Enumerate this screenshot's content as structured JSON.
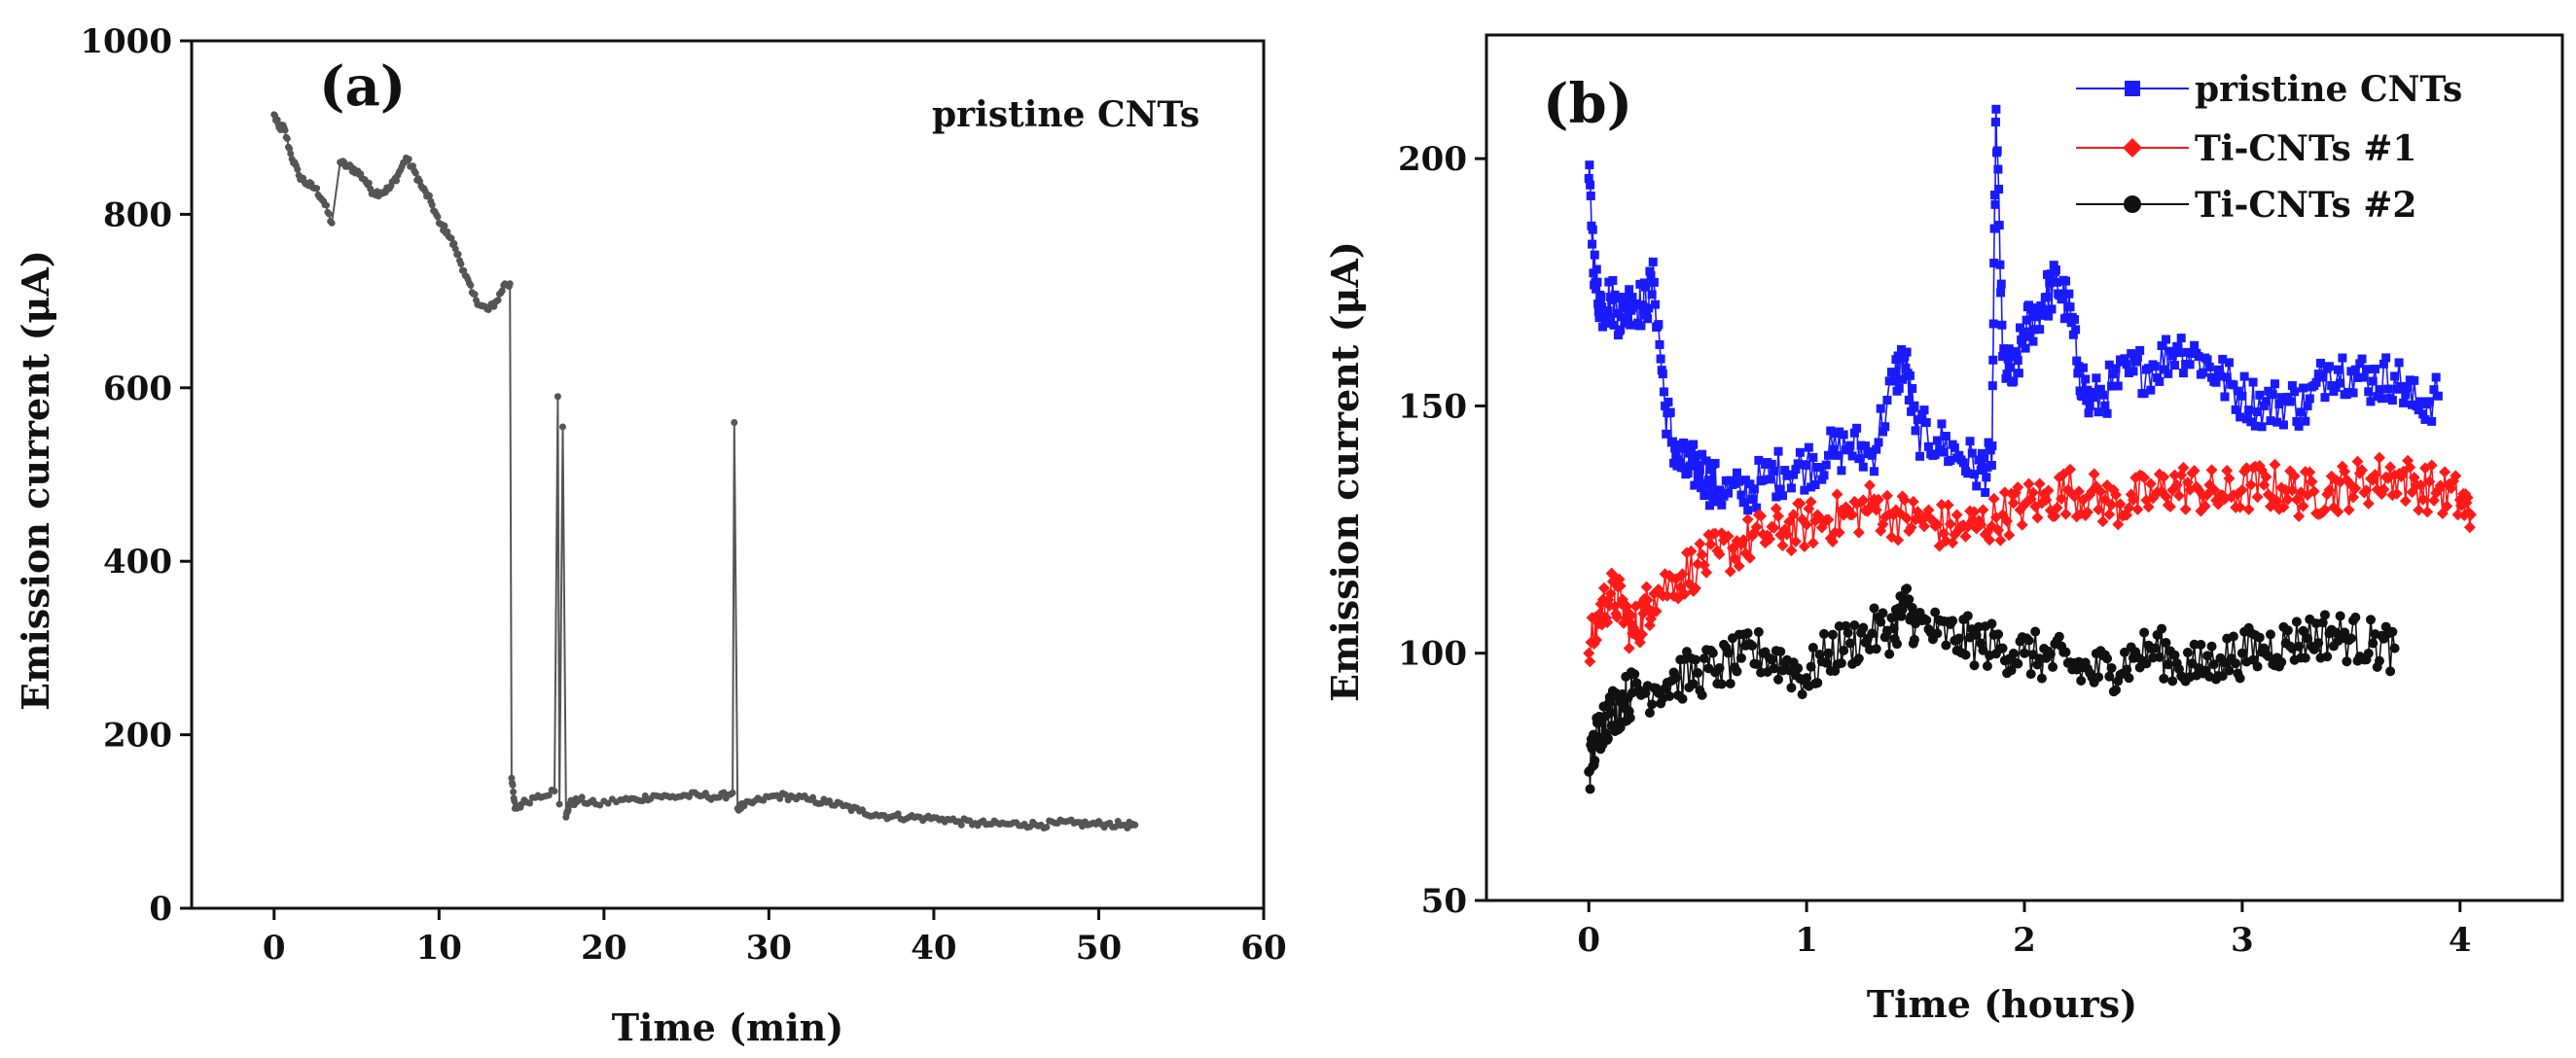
{
  "chart_data": [
    {
      "type": "scatter",
      "panel_label": "(a)",
      "annotation": "pristine CNTs",
      "xlabel": "Time (min)",
      "ylabel": "Emission current (μA)",
      "xlim": [
        -5,
        60
      ],
      "ylim": [
        0,
        1000
      ],
      "xticks": [
        "0",
        "10",
        "20",
        "30",
        "40",
        "50",
        "60"
      ],
      "xtick_values": [
        0,
        10,
        20,
        30,
        40,
        50,
        60
      ],
      "yticks": [
        "0",
        "200",
        "400",
        "600",
        "800",
        "1000"
      ],
      "ytick_values": [
        0,
        200,
        400,
        600,
        800,
        1000
      ],
      "series": [
        {
          "name": "pristine CNTs",
          "color": "#555555",
          "marker": "circle",
          "x": [
            0,
            0.3,
            0.6,
            1.0,
            1.5,
            2.0,
            2.5,
            3.0,
            3.5,
            4.0,
            4.5,
            5.0,
            5.5,
            6.0,
            6.5,
            7.0,
            7.5,
            8.0,
            8.5,
            9.0,
            9.5,
            10.0,
            10.5,
            11.0,
            11.5,
            12.0,
            12.5,
            13.0,
            13.5,
            14.0,
            14.3,
            14.4,
            14.6,
            15.0,
            16.0,
            17.0,
            17.2,
            17.3,
            17.5,
            17.7,
            17.9,
            18.5,
            19.5,
            21,
            22,
            23,
            24,
            25,
            26,
            27,
            27.8,
            27.9,
            28.1,
            28.5,
            29.5,
            30.5,
            31.5,
            32.5,
            33.5,
            34.5,
            35.5,
            36.5,
            37.5,
            38.5,
            39.5,
            40.5,
            41.5,
            42.5,
            43.5,
            44.5,
            45.5,
            46.5,
            47.5,
            48.5,
            49.5,
            50.5,
            51.5,
            52.2
          ],
          "y": [
            915,
            900,
            900,
            870,
            845,
            835,
            830,
            815,
            790,
            860,
            855,
            850,
            840,
            825,
            825,
            830,
            845,
            865,
            850,
            830,
            815,
            790,
            780,
            760,
            735,
            710,
            695,
            690,
            700,
            720,
            720,
            150,
            115,
            120,
            130,
            135,
            590,
            120,
            555,
            105,
            120,
            125,
            120,
            125,
            125,
            130,
            128,
            130,
            130,
            128,
            133,
            560,
            115,
            118,
            125,
            130,
            128,
            125,
            122,
            118,
            112,
            108,
            106,
            105,
            104,
            103,
            100,
            98,
            97,
            97,
            97,
            96,
            98,
            98,
            97,
            97,
            96,
            96
          ]
        }
      ]
    },
    {
      "type": "line",
      "panel_label": "(b)",
      "xlabel": "Time (hours)",
      "ylabel": "Emission current (μA)",
      "xlim": [
        -0.47,
        4.47
      ],
      "ylim": [
        50,
        225
      ],
      "xticks": [
        "0",
        "1",
        "2",
        "3",
        "4"
      ],
      "xtick_values": [
        0,
        1,
        2,
        3,
        4
      ],
      "yticks": [
        "50",
        "100",
        "150",
        "200"
      ],
      "ytick_values": [
        50,
        100,
        150,
        200
      ],
      "legend_position": "top-right",
      "series": [
        {
          "name": "pristine CNTs",
          "color": "#1a1aff",
          "marker": "square",
          "x": [
            0,
            0.03,
            0.06,
            0.1,
            0.15,
            0.2,
            0.25,
            0.3,
            0.35,
            0.4,
            0.45,
            0.5,
            0.55,
            0.6,
            0.7,
            0.8,
            0.9,
            1.0,
            1.1,
            1.2,
            1.3,
            1.4,
            1.45,
            1.5,
            1.6,
            1.7,
            1.8,
            1.85,
            1.87,
            1.9,
            1.95,
            2.0,
            2.05,
            2.1,
            2.15,
            2.2,
            2.25,
            2.3,
            2.4,
            2.5,
            2.6,
            2.7,
            2.8,
            2.9,
            3.0,
            3.1,
            3.2,
            3.3,
            3.4,
            3.5,
            3.6,
            3.7,
            3.8,
            3.9
          ],
          "y": [
            196,
            175,
            170,
            172,
            168,
            172,
            170,
            175,
            150,
            140,
            137,
            138,
            135,
            133,
            132,
            135,
            137,
            138,
            140,
            142,
            140,
            155,
            160,
            145,
            143,
            140,
            137,
            138,
            210,
            160,
            155,
            165,
            168,
            172,
            175,
            170,
            158,
            150,
            154,
            157,
            158,
            162,
            160,
            156,
            152,
            150,
            151,
            150,
            158,
            157,
            155,
            156,
            150,
            152
          ]
        },
        {
          "name": "Ti-CNTs #1",
          "color": "#ff1a1a",
          "marker": "diamond",
          "x": [
            0,
            0.05,
            0.1,
            0.15,
            0.2,
            0.25,
            0.3,
            0.4,
            0.5,
            0.6,
            0.7,
            0.8,
            0.9,
            1.0,
            1.1,
            1.2,
            1.3,
            1.4,
            1.5,
            1.6,
            1.7,
            1.8,
            1.9,
            2.0,
            2.1,
            2.2,
            2.3,
            2.4,
            2.5,
            2.6,
            2.7,
            2.8,
            2.9,
            3.0,
            3.1,
            3.2,
            3.3,
            3.4,
            3.5,
            3.6,
            3.7,
            3.8,
            3.9,
            4.0,
            4.05
          ],
          "y": [
            100,
            108,
            112,
            110,
            104,
            108,
            112,
            115,
            118,
            120,
            122,
            124,
            125,
            126,
            127,
            128,
            130,
            128,
            127,
            126,
            125,
            126,
            128,
            130,
            131,
            133,
            132,
            130,
            131,
            132,
            134,
            133,
            132,
            133,
            134,
            133,
            132,
            133,
            134,
            135,
            136,
            134,
            133,
            131,
            128
          ]
        },
        {
          "name": "Ti-CNTs #2",
          "color": "#111111",
          "marker": "circle",
          "x": [
            0,
            0.03,
            0.06,
            0.1,
            0.15,
            0.2,
            0.3,
            0.4,
            0.5,
            0.6,
            0.7,
            0.8,
            0.9,
            1.0,
            1.1,
            1.2,
            1.3,
            1.4,
            1.45,
            1.5,
            1.6,
            1.7,
            1.8,
            1.9,
            2.0,
            2.1,
            2.2,
            2.3,
            2.4,
            2.5,
            2.6,
            2.7,
            2.8,
            2.9,
            3.0,
            3.1,
            3.2,
            3.3,
            3.4,
            3.5,
            3.6,
            3.7
          ],
          "y": [
            76,
            82,
            86,
            88,
            90,
            92,
            93,
            95,
            96,
            97,
            99,
            100,
            98,
            95,
            100,
            102,
            104,
            105,
            110,
            106,
            104,
            103,
            102,
            101,
            100,
            99,
            98,
            96,
            97,
            99,
            101,
            98,
            97,
            99,
            100,
            101,
            102,
            103,
            104,
            103,
            102,
            101
          ]
        }
      ]
    }
  ]
}
